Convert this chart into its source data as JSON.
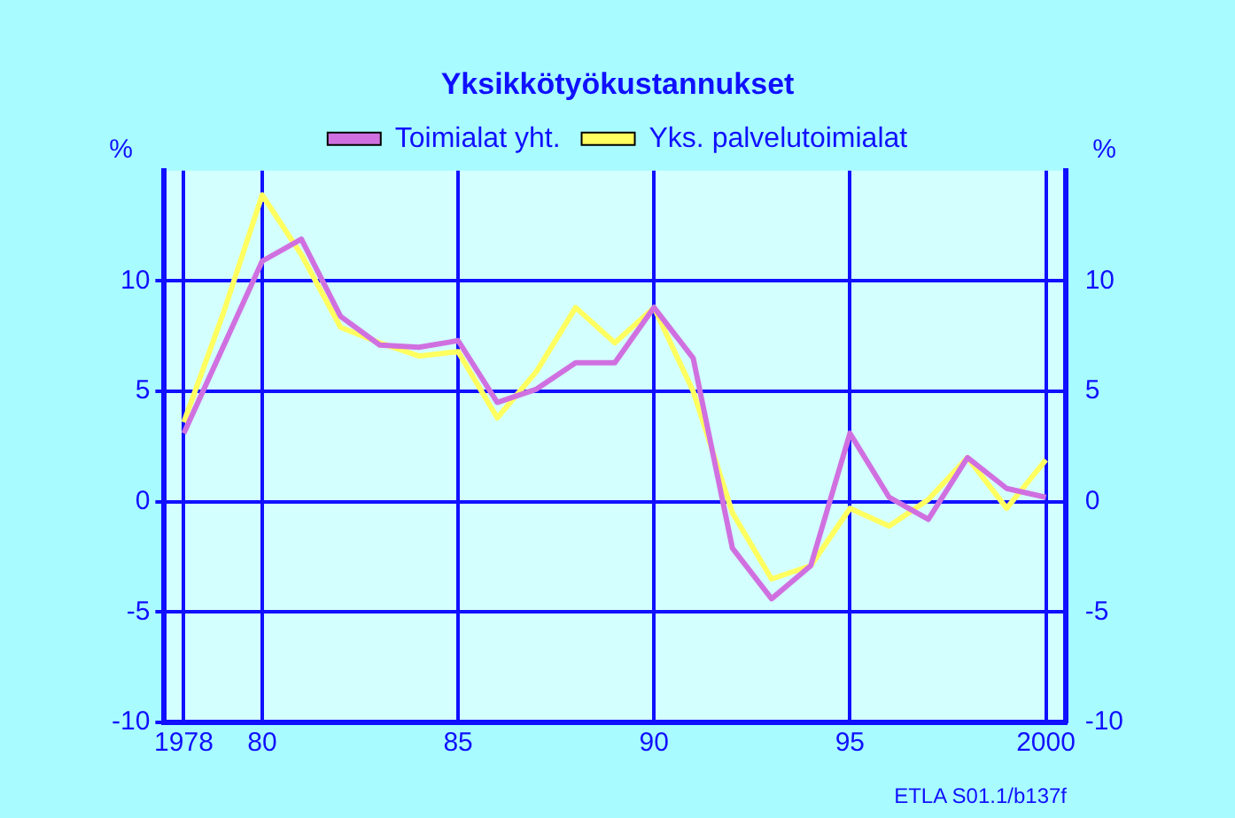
{
  "chart_data": {
    "type": "line",
    "title": "Yksikkötyökustannukset",
    "ylabel": "%",
    "y2label": "%",
    "x": [
      1978,
      1979,
      1980,
      1981,
      1982,
      1983,
      1984,
      1985,
      1986,
      1987,
      1988,
      1989,
      1990,
      1991,
      1992,
      1993,
      1994,
      1995,
      1996,
      1997,
      1998,
      1999,
      2000
    ],
    "series": [
      {
        "name": "Toimialat yht.",
        "color": "#d070e0",
        "values": [
          3.1,
          7.0,
          10.9,
          11.9,
          8.4,
          7.1,
          7.0,
          7.3,
          4.5,
          5.1,
          6.3,
          6.3,
          8.8,
          6.5,
          -2.1,
          -4.4,
          -2.9,
          3.1,
          0.2,
          -0.8,
          2.0,
          0.6,
          0.2
        ]
      },
      {
        "name": "Yks. palvelutoimialat",
        "color": "#ffff60",
        "values": [
          3.6,
          8.5,
          13.9,
          11.2,
          7.9,
          7.2,
          6.6,
          6.8,
          3.8,
          5.9,
          8.8,
          7.2,
          8.8,
          5.0,
          -0.5,
          -3.5,
          -2.9,
          -0.3,
          -1.1,
          0.1,
          2.0,
          -0.3,
          1.9
        ]
      }
    ],
    "xlim": [
      1977.5,
      2000.5
    ],
    "xticks": [
      {
        "value": 1978,
        "label": "1978"
      },
      {
        "value": 1980,
        "label": "80"
      },
      {
        "value": 1985,
        "label": "85"
      },
      {
        "value": 1990,
        "label": "90"
      },
      {
        "value": 1995,
        "label": "95"
      },
      {
        "value": 2000,
        "label": "2000"
      }
    ],
    "ylim": [
      -10,
      15
    ],
    "yticks": [
      -10,
      -5,
      0,
      5,
      10
    ],
    "y2lim": [
      -10,
      15
    ],
    "y2ticks": [
      -10,
      -5,
      0,
      5,
      10
    ],
    "annotations": [
      "ETLA S01.1/b137f"
    ],
    "grid": true,
    "legend": "top",
    "marker": "none",
    "line_style": "solid"
  }
}
